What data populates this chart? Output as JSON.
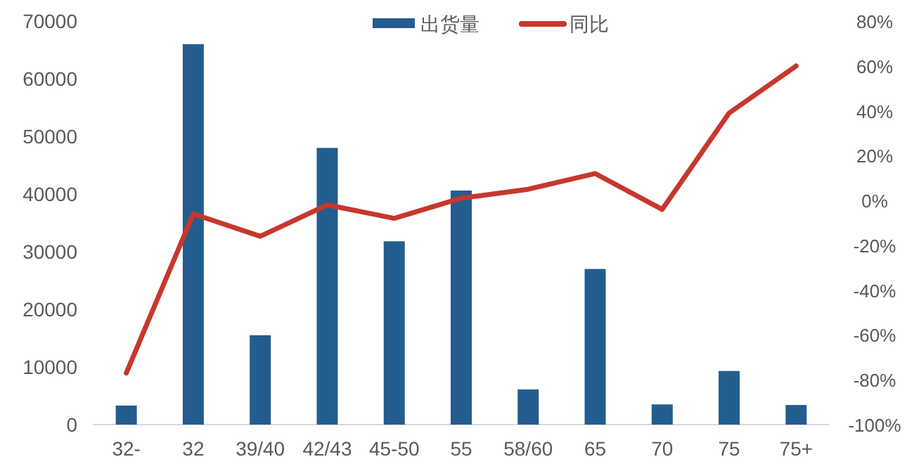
{
  "chart_data": {
    "type": "bar",
    "categories": [
      "32-",
      "32",
      "39/40",
      "42/43",
      "45-50",
      "55",
      "58/60",
      "65",
      "70",
      "75",
      "75+"
    ],
    "series": [
      {
        "name": "出货量",
        "color": "#235d8f",
        "values": [
          3300,
          66000,
          15500,
          48000,
          31800,
          40600,
          6100,
          27000,
          3500,
          9300,
          3400
        ]
      },
      {
        "name": "同比",
        "type": "line",
        "axis": "y2",
        "color": "#c8372d",
        "values": [
          -77,
          -6,
          -16,
          -2,
          -8,
          1,
          5,
          12,
          -4,
          39,
          60
        ]
      }
    ],
    "ylim": [
      0,
      70000
    ],
    "yticks": [
      0,
      10000,
      20000,
      30000,
      40000,
      50000,
      60000,
      70000
    ],
    "y2lim": [
      -100,
      80
    ],
    "y2ticks": [
      {
        "value": -100,
        "label": "-100%"
      },
      {
        "value": -80,
        "label": "-80%"
      },
      {
        "value": -60,
        "label": "-60%"
      },
      {
        "value": -40,
        "label": "-40%"
      },
      {
        "value": -20,
        "label": "-20%"
      },
      {
        "value": 0,
        "label": "0%"
      },
      {
        "value": 20,
        "label": "20%"
      },
      {
        "value": 40,
        "label": "40%"
      },
      {
        "value": 60,
        "label": "60%"
      },
      {
        "value": 80,
        "label": "80%"
      }
    ],
    "legend": "top",
    "grid": false,
    "marker": "none",
    "line_style": "solid"
  }
}
